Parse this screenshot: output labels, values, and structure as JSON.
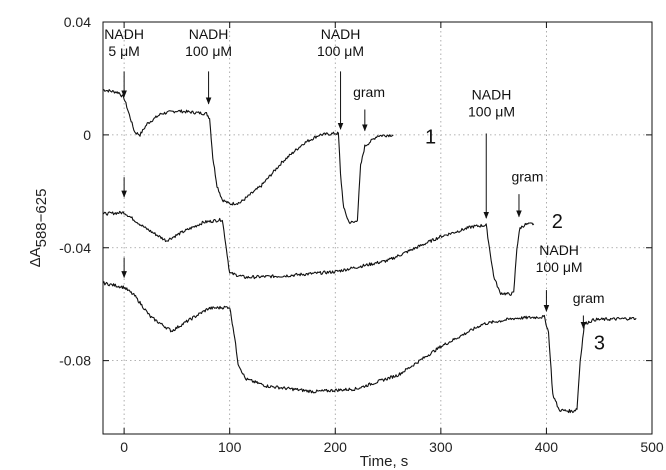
{
  "chart_data": {
    "type": "line",
    "xlabel": "Time, s",
    "ylabel_main": "ΔA",
    "ylabel_sub": "588−625",
    "xlim": [
      -20,
      500
    ],
    "ylim": [
      -0.106,
      0.04
    ],
    "xticks": [
      0,
      100,
      200,
      300,
      400,
      500
    ],
    "xtick_labels": [
      "0",
      "100",
      "200",
      "300",
      "400",
      "500"
    ],
    "yticks": [
      0.04,
      0,
      -0.04,
      -0.08
    ],
    "ytick_labels": [
      "0.04",
      "0",
      "-0.04",
      "-0.08"
    ],
    "grid": true,
    "series": [
      {
        "label": "1",
        "label_pos": [
          285,
          -0.0005
        ],
        "points": [
          [
            -20,
            0.016
          ],
          [
            -5,
            0.015
          ],
          [
            0,
            0.013
          ],
          [
            5,
            0.007
          ],
          [
            10,
            0.001
          ],
          [
            15,
            0.0
          ],
          [
            22,
            0.004
          ],
          [
            35,
            0.0075
          ],
          [
            50,
            0.0085
          ],
          [
            65,
            0.008
          ],
          [
            78,
            0.0075
          ],
          [
            81,
            0.006
          ],
          [
            84,
            -0.008
          ],
          [
            88,
            -0.018
          ],
          [
            93,
            -0.023
          ],
          [
            100,
            -0.0245
          ],
          [
            110,
            -0.024
          ],
          [
            130,
            -0.018
          ],
          [
            150,
            -0.0095
          ],
          [
            170,
            -0.003
          ],
          [
            185,
            0.0
          ],
          [
            200,
            0.0005
          ],
          [
            203,
            0.0005
          ],
          [
            205,
            -0.014
          ],
          [
            208,
            -0.026
          ],
          [
            213,
            -0.031
          ],
          [
            218,
            -0.031
          ],
          [
            221,
            -0.03
          ],
          [
            224,
            -0.011
          ],
          [
            228,
            -0.004
          ],
          [
            240,
            -0.0003
          ],
          [
            255,
            0.0
          ]
        ]
      },
      {
        "label": "2",
        "label_pos": [
          405,
          -0.0305
        ],
        "points": [
          [
            -20,
            -0.028
          ],
          [
            0,
            -0.0275
          ],
          [
            20,
            -0.033
          ],
          [
            40,
            -0.0375
          ],
          [
            55,
            -0.0345
          ],
          [
            75,
            -0.031
          ],
          [
            93,
            -0.03
          ],
          [
            96,
            -0.038
          ],
          [
            100,
            -0.049
          ],
          [
            115,
            -0.0505
          ],
          [
            150,
            -0.05
          ],
          [
            200,
            -0.0485
          ],
          [
            250,
            -0.0445
          ],
          [
            300,
            -0.036
          ],
          [
            330,
            -0.0325
          ],
          [
            343,
            -0.032
          ],
          [
            346,
            -0.04
          ],
          [
            350,
            -0.05
          ],
          [
            356,
            -0.056
          ],
          [
            365,
            -0.0565
          ],
          [
            369,
            -0.056
          ],
          [
            372,
            -0.04
          ],
          [
            375,
            -0.033
          ],
          [
            380,
            -0.0318
          ],
          [
            388,
            -0.0315
          ]
        ]
      },
      {
        "label": "3",
        "label_pos": [
          445,
          -0.0735
        ],
        "points": [
          [
            -20,
            -0.0525
          ],
          [
            0,
            -0.054
          ],
          [
            10,
            -0.057
          ],
          [
            25,
            -0.0645
          ],
          [
            45,
            -0.0695
          ],
          [
            60,
            -0.066
          ],
          [
            80,
            -0.0615
          ],
          [
            100,
            -0.061
          ],
          [
            104,
            -0.07
          ],
          [
            108,
            -0.081
          ],
          [
            115,
            -0.0865
          ],
          [
            135,
            -0.089
          ],
          [
            180,
            -0.091
          ],
          [
            220,
            -0.09
          ],
          [
            260,
            -0.085
          ],
          [
            300,
            -0.075
          ],
          [
            340,
            -0.067
          ],
          [
            370,
            -0.065
          ],
          [
            398,
            -0.0645
          ],
          [
            402,
            -0.07
          ],
          [
            406,
            -0.092
          ],
          [
            412,
            -0.0975
          ],
          [
            425,
            -0.098
          ],
          [
            429,
            -0.097
          ],
          [
            432,
            -0.08
          ],
          [
            436,
            -0.067
          ],
          [
            445,
            -0.0655
          ],
          [
            485,
            -0.065
          ]
        ]
      }
    ],
    "annotations": [
      {
        "lines": [
          "NADH",
          "5 μM"
        ],
        "text_x": 0,
        "text_y": 0.034,
        "arrow_x": 0,
        "arrow_from": 0.0225,
        "arrow_to": 0.0135
      },
      {
        "lines": [
          "NADH",
          "100 μM"
        ],
        "text_x": 80,
        "text_y": 0.034,
        "arrow_x": 80,
        "arrow_from": 0.0225,
        "arrow_to": 0.011
      },
      {
        "lines": [
          "NADH",
          "100 μM"
        ],
        "text_x": 205,
        "text_y": 0.034,
        "arrow_x": 205,
        "arrow_from": 0.0225,
        "arrow_to": 0.002
      },
      {
        "lines": [
          "gram"
        ],
        "text_x": 232,
        "text_y": 0.0135,
        "arrow_x": 228,
        "arrow_from": 0.009,
        "arrow_to": 0.0015
      },
      {
        "lines": [
          "NADH",
          "100 μM"
        ],
        "text_x": 348,
        "text_y": 0.0125,
        "arrow_x": 343,
        "arrow_from": 0.0005,
        "arrow_to": -0.0295
      },
      {
        "lines": [
          "gram"
        ],
        "text_x": 382,
        "text_y": -0.0165,
        "arrow_x": 374,
        "arrow_from": -0.021,
        "arrow_to": -0.029
      },
      {
        "lines": [
          "NADH",
          "100 μM"
        ],
        "text_x": 412,
        "text_y": -0.0425,
        "arrow_x": 400,
        "arrow_from": -0.055,
        "arrow_to": -0.0625
      },
      {
        "lines": [
          "gram"
        ],
        "text_x": 440,
        "text_y": -0.0595,
        "arrow_x": 435,
        "arrow_from": -0.064,
        "arrow_to": -0.0685
      },
      {
        "lines": [],
        "text_x": 0,
        "text_y": 0,
        "arrow_x": 0,
        "arrow_from": -0.015,
        "arrow_to": -0.022
      },
      {
        "lines": [],
        "text_x": 0,
        "text_y": 0,
        "arrow_x": 0,
        "arrow_from": -0.0435,
        "arrow_to": -0.0505
      }
    ]
  }
}
